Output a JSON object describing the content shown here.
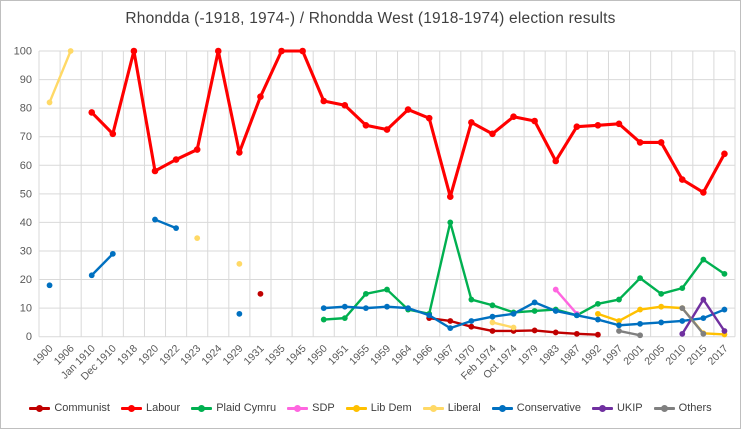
{
  "title": "Rhondda (-1918, 1974-) / Rhondda West (1918-1974) election results",
  "colors": {
    "background": "#ffffff",
    "border": "#bfbfbf",
    "gridline": "#d9d9d9",
    "axis_text": "#595959",
    "title_text": "#3f3f3f",
    "legend_text": "#404040"
  },
  "chart_data": {
    "type": "line",
    "title": "Rhondda (-1918, 1974-) / Rhondda West (1918-1974) election results",
    "xlabel": "",
    "ylabel": "",
    "ylim": [
      0,
      100
    ],
    "ytick_step": 10,
    "grid": true,
    "legend_position": "bottom",
    "categories": [
      "1900",
      "1906",
      "Jan 1910",
      "Dec 1910",
      "1918",
      "1920",
      "1922",
      "1923",
      "1924",
      "1929",
      "1931",
      "1935",
      "1945",
      "1950",
      "1951",
      "1955",
      "1959",
      "1964",
      "1966",
      "1967",
      "1970",
      "Feb 1974",
      "Oct 1974",
      "1979",
      "1983",
      "1987",
      "1992",
      "1997",
      "2001",
      "2005",
      "2010",
      "2015",
      "2017"
    ],
    "series": [
      {
        "name": "Communist",
        "color": "#C00000",
        "values": [
          null,
          null,
          null,
          null,
          null,
          null,
          null,
          null,
          null,
          null,
          15,
          null,
          null,
          null,
          null,
          null,
          null,
          null,
          6.5,
          5.5,
          3.5,
          2,
          2,
          2.2,
          1.5,
          1,
          0.7,
          null,
          null,
          null,
          null,
          null,
          null
        ]
      },
      {
        "name": "Labour",
        "color": "#FF0000",
        "values": [
          null,
          null,
          78.5,
          71,
          100,
          58,
          62,
          65.5,
          100,
          64.5,
          84,
          100,
          100,
          82.5,
          81,
          74,
          72.5,
          79.5,
          76.5,
          49,
          75,
          71,
          77,
          75.5,
          61.5,
          73.5,
          74,
          74.5,
          68,
          68,
          55,
          50.5,
          64
        ]
      },
      {
        "name": "Plaid Cymru",
        "color": "#00B050",
        "values": [
          null,
          null,
          null,
          null,
          null,
          null,
          null,
          null,
          null,
          null,
          null,
          null,
          null,
          6,
          6.5,
          15,
          16.5,
          9.5,
          8,
          40,
          13,
          11,
          8.5,
          9,
          9.5,
          7.5,
          11.5,
          13,
          20.5,
          15,
          17,
          27,
          22
        ]
      },
      {
        "name": "SDP",
        "color": "#FF66E0",
        "values": [
          null,
          null,
          null,
          null,
          null,
          null,
          null,
          null,
          null,
          null,
          null,
          null,
          null,
          null,
          null,
          null,
          null,
          null,
          null,
          null,
          null,
          null,
          null,
          null,
          16.5,
          8,
          null,
          null,
          null,
          null,
          null,
          null,
          null
        ]
      },
      {
        "name": "Lib Dem",
        "color": "#FFC000",
        "values": [
          null,
          null,
          null,
          null,
          null,
          null,
          null,
          null,
          null,
          null,
          null,
          null,
          null,
          null,
          null,
          null,
          null,
          null,
          null,
          null,
          null,
          null,
          null,
          null,
          null,
          null,
          8,
          5.5,
          9.5,
          10.5,
          10,
          1.2,
          0.8
        ]
      },
      {
        "name": "Liberal",
        "color": "#FFD966",
        "values": [
          82,
          100,
          null,
          null,
          null,
          null,
          null,
          34.5,
          null,
          25.5,
          null,
          null,
          null,
          null,
          null,
          null,
          null,
          null,
          null,
          null,
          null,
          5,
          3.2,
          null,
          null,
          null,
          null,
          null,
          null,
          null,
          null,
          null,
          null
        ]
      },
      {
        "name": "Conservative",
        "color": "#0070C0",
        "values": [
          18,
          null,
          21.5,
          29,
          null,
          41,
          38,
          null,
          null,
          8,
          null,
          null,
          null,
          10,
          10.5,
          10,
          10.5,
          10,
          7.5,
          3,
          5.5,
          7,
          8,
          12,
          9,
          7.5,
          6,
          4,
          4.5,
          5,
          5.5,
          6.5,
          9.5
        ]
      },
      {
        "name": "UKIP",
        "color": "#7030A0",
        "values": [
          null,
          null,
          null,
          null,
          null,
          null,
          null,
          null,
          null,
          null,
          null,
          null,
          null,
          null,
          null,
          null,
          null,
          null,
          null,
          null,
          null,
          null,
          null,
          null,
          null,
          null,
          null,
          null,
          null,
          null,
          1,
          13,
          2
        ]
      },
      {
        "name": "Others",
        "color": "#808080",
        "values": [
          null,
          null,
          null,
          null,
          null,
          null,
          null,
          null,
          null,
          null,
          null,
          null,
          null,
          null,
          null,
          null,
          null,
          null,
          null,
          null,
          null,
          null,
          null,
          null,
          null,
          null,
          null,
          2,
          0.5,
          null,
          10,
          1,
          null
        ]
      }
    ]
  }
}
